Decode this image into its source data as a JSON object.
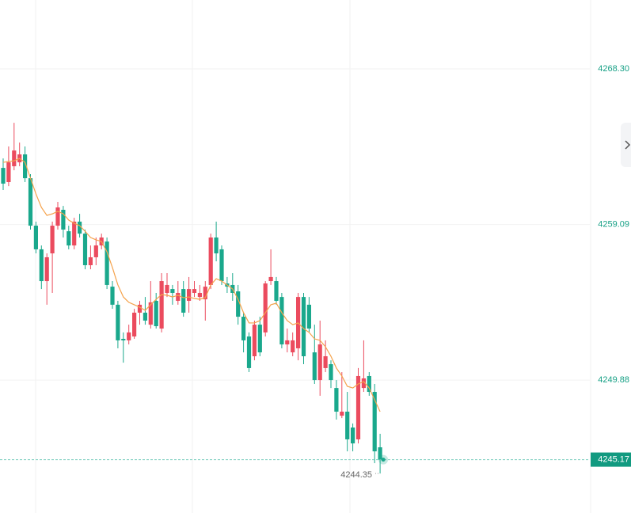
{
  "chart_data": {
    "type": "candlestick",
    "categories": [
      null,
      null,
      null,
      null,
      null,
      null,
      null,
      null,
      null,
      null,
      null,
      null,
      null,
      null,
      null,
      null,
      null,
      null,
      null,
      null,
      null,
      null,
      null,
      null,
      null,
      null,
      null,
      null,
      null,
      null,
      null,
      null,
      null,
      null,
      null,
      null,
      null,
      null,
      null,
      null,
      null,
      null,
      null,
      null,
      null,
      null,
      null,
      null,
      null,
      null,
      null,
      null,
      null,
      null,
      null,
      null,
      null,
      null,
      null,
      null,
      null,
      null,
      null,
      null,
      null,
      null,
      null,
      null,
      null,
      null
    ],
    "open": [
      4262.44,
      4261.6,
      4262.54,
      4262.77,
      4263.24,
      4261.83,
      4259.02,
      4257.62,
      4255.74,
      4257.38,
      4259.02,
      4259.96,
      4258.69,
      4257.85,
      4259.26,
      4258.55,
      4256.68,
      4257.15,
      4257.85,
      4258.08,
      4255.41,
      4254.34,
      4252.32,
      4252.23,
      4252.46,
      4253.87,
      4253.87,
      4253.16,
      4254.57,
      4252.93,
      4255.04,
      4255.27,
      4254.57,
      4255.27,
      4254.57,
      4255.04,
      4254.8,
      4254.66,
      4255.51,
      4258.32,
      4257.62,
      4255.6,
      4255.51,
      4255.13,
      4253.63,
      4252.46,
      4251.29,
      4253.16,
      4252.7,
      4255.74,
      4255.74,
      4254.8,
      4251.99,
      4251.52,
      4251.76,
      4254.8,
      4254.34,
      4251.52,
      4249.88,
      4250.59,
      4250.82,
      4249.41,
      4247.77,
      4248.01,
      4247.07,
      4246.37,
      4249.41,
      4250.12,
      4249.18,
      4245.9
    ],
    "high": [
      4263.0,
      4263.71,
      4265.11,
      4263.94,
      4263.71,
      4262.07,
      4259.26,
      4257.85,
      4257.38,
      4259.26,
      4260.43,
      4260.19,
      4259.02,
      4259.49,
      4259.72,
      4258.79,
      4257.85,
      4258.32,
      4258.55,
      4258.32,
      4255.74,
      4254.57,
      4252.7,
      4253.16,
      4254.1,
      4254.57,
      4254.8,
      4255.74,
      4255.04,
      4256.21,
      4256.21,
      4255.51,
      4255.74,
      4255.74,
      4255.98,
      4255.74,
      4255.51,
      4255.74,
      4258.55,
      4259.26,
      4257.85,
      4255.98,
      4256.21,
      4255.51,
      4253.87,
      4252.7,
      4253.4,
      4253.63,
      4255.74,
      4257.62,
      4255.98,
      4255.04,
      4252.93,
      4252.7,
      4255.04,
      4255.04,
      4254.8,
      4253.16,
      4253.4,
      4252.23,
      4251.05,
      4249.88,
      4250.35,
      4249.18,
      4247.31,
      4250.59,
      4252.23,
      4250.35,
      4249.65,
      4246.7
    ],
    "low": [
      4261.13,
      4261.36,
      4262.3,
      4262.54,
      4261.6,
      4258.79,
      4257.38,
      4255.27,
      4254.34,
      4255.04,
      4258.79,
      4258.32,
      4257.62,
      4257.62,
      4258.32,
      4256.44,
      4256.44,
      4256.68,
      4257.62,
      4255.27,
      4254.1,
      4251.76,
      4250.91,
      4251.99,
      4252.32,
      4253.16,
      4253.16,
      4252.93,
      4252.93,
      4252.7,
      4254.8,
      4254.34,
      4254.34,
      4253.63,
      4253.87,
      4254.8,
      4254.57,
      4253.4,
      4255.27,
      4256.91,
      4255.51,
      4255.04,
      4254.57,
      4253.16,
      4251.52,
      4250.35,
      4251.05,
      4251.29,
      4252.46,
      4255.51,
      4254.34,
      4251.76,
      4251.52,
      4251.29,
      4251.05,
      4250.82,
      4252.7,
      4249.65,
      4248.95,
      4250.35,
      4249.41,
      4247.54,
      4247.63,
      4245.66,
      4245.66,
      4246.13,
      4249.18,
      4248.95,
      4244.96,
      4244.35
    ],
    "close": [
      4261.51,
      4262.77,
      4263.47,
      4263.24,
      4261.83,
      4259.02,
      4257.62,
      4255.74,
      4257.15,
      4259.02,
      4260.1,
      4258.79,
      4257.85,
      4259.26,
      4258.55,
      4256.68,
      4257.15,
      4257.85,
      4258.32,
      4255.51,
      4254.34,
      4252.23,
      4252.23,
      4252.7,
      4253.87,
      4254.34,
      4253.4,
      4254.48,
      4253.07,
      4255.74,
      4255.51,
      4255.04,
      4255.04,
      4253.87,
      4255.27,
      4255.27,
      4255.04,
      4255.41,
      4258.32,
      4257.38,
      4255.74,
      4255.41,
      4255.04,
      4253.63,
      4252.23,
      4250.59,
      4253.16,
      4251.52,
      4255.6,
      4255.98,
      4254.57,
      4251.99,
      4252.23,
      4252.23,
      4254.8,
      4251.29,
      4252.93,
      4249.88,
      4251.99,
      4251.29,
      4249.88,
      4248.01,
      4248.01,
      4246.37,
      4246.13,
      4250.12,
      4249.98,
      4249.18,
      4245.66,
      4245.17
    ],
    "up_color": "#eb4b5e",
    "down_color": "#1aa88c",
    "ma": {
      "color": "#f5a24b",
      "values": [
        4262.77,
        4262.82,
        4262.86,
        4263.0,
        4262.77,
        4261.83,
        4260.9,
        4260.1,
        4259.63,
        4259.72,
        4259.87,
        4259.72,
        4259.35,
        4259.16,
        4259.02,
        4258.69,
        4258.32,
        4258.18,
        4258.08,
        4257.47,
        4256.54,
        4255.51,
        4254.8,
        4254.48,
        4254.34,
        4254.19,
        4254.01,
        4254.34,
        4254.66,
        4254.94,
        4254.9,
        4254.8,
        4254.9,
        4254.76,
        4254.8,
        4254.71,
        4254.66,
        4254.76,
        4255.51,
        4255.88,
        4255.74,
        4255.51,
        4255.27,
        4254.66,
        4253.87,
        4253.26,
        4253.26,
        4253.4,
        4253.87,
        4254.34,
        4254.43,
        4253.87,
        4253.4,
        4253.16,
        4253.26,
        4252.93,
        4252.7,
        4252.32,
        4252.23,
        4251.85,
        4251.29,
        4250.59,
        4250.12,
        4249.51,
        4249.41,
        4249.65,
        4249.79,
        4249.41,
        4248.71,
        4248.01
      ]
    },
    "ylim": [
      4242.01,
      4272.38
    ],
    "yticks": [
      {
        "value": 4268.3,
        "label": "4268.30"
      },
      4259.09,
      4249.88
    ],
    "grid": true,
    "last_price": 4245.17,
    "low_label": 4244.35
  }
}
